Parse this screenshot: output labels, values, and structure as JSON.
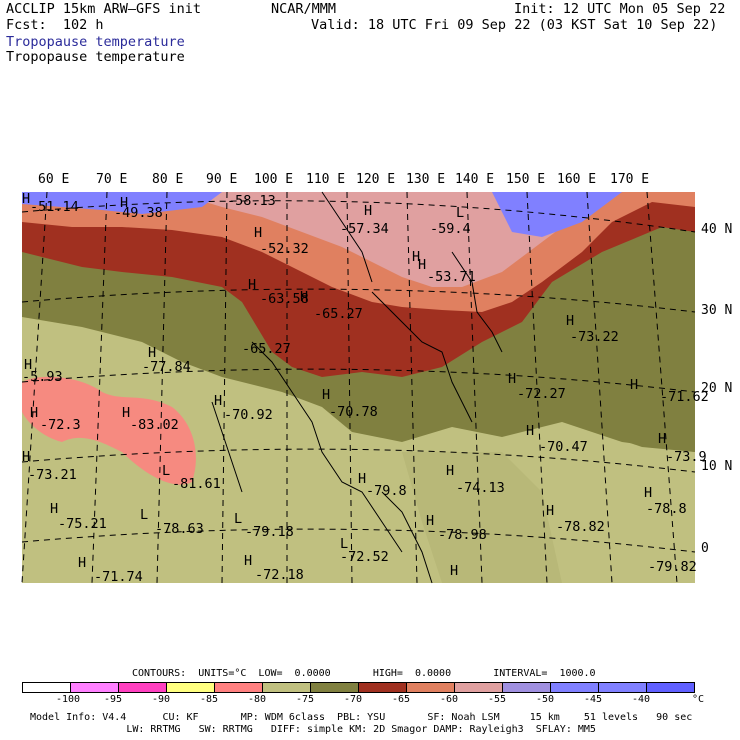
{
  "header": {
    "model": "ACCLIP 15km ARW–GFS init",
    "org": "NCAR/MMM",
    "init": "Init: 12 UTC Mon 05 Sep 22",
    "fcst": "Fcst:  102 h",
    "valid": "Valid: 18 UTC Fri 09 Sep 22 (03 KST Sat 10 Sep 22)",
    "field1": "Tropopause temperature",
    "field2": "Tropopause temperature",
    "field1_color": "#2b2b9a"
  },
  "lon_labels": [
    "60 E",
    "70 E",
    "80 E",
    "90 E",
    "100 E",
    "110 E",
    "120 E",
    "130 E",
    "140 E",
    "150 E",
    "160 E",
    "170 E"
  ],
  "lat_labels": [
    "40 N",
    "30 N",
    "20 N",
    "10 N",
    "0"
  ],
  "map_labels": [
    {
      "t": "-51.14"
    },
    {
      "t": "-49.38"
    },
    {
      "t": "-58.13"
    },
    {
      "t": "-52.32"
    },
    {
      "t": "-57.34"
    },
    {
      "t": "-59.4"
    },
    {
      "t": "-63.58"
    },
    {
      "t": "-53.71"
    },
    {
      "t": "-65.27"
    },
    {
      "t": "-65.27"
    },
    {
      "t": "-73.22"
    },
    {
      "t": "-77.84"
    },
    {
      "t": "-5.93"
    },
    {
      "t": "-72.27"
    },
    {
      "t": "-71.62"
    },
    {
      "t": "-70.92"
    },
    {
      "t": "-70.78"
    },
    {
      "t": "-72.3"
    },
    {
      "t": "-83.02"
    },
    {
      "t": "-70.47"
    },
    {
      "t": "-73.9"
    },
    {
      "t": "-73.21"
    },
    {
      "t": "-81.61"
    },
    {
      "t": "-74.13"
    },
    {
      "t": "-79.8"
    },
    {
      "t": "-75.21"
    },
    {
      "t": "-78.63"
    },
    {
      "t": "-79.18"
    },
    {
      "t": "-78.98"
    },
    {
      "t": "-78.82"
    },
    {
      "t": "-78.8"
    },
    {
      "t": "-72.52"
    },
    {
      "t": "-71.74"
    },
    {
      "t": "-72.18"
    },
    {
      "t": "-79.82"
    }
  ],
  "hl_marks": [
    "H",
    "H",
    "H",
    "H",
    "L",
    "H",
    "H",
    "H",
    "H",
    "H",
    "H",
    "H",
    "H",
    "H",
    "H",
    "H",
    "H",
    "H",
    "H",
    "H",
    "H",
    "L",
    "H",
    "H",
    "H",
    "H",
    "L",
    "L",
    "H",
    "H",
    "L",
    "H",
    "H",
    "H"
  ],
  "footer": {
    "contours": "CONTOURS:  UNITS=°C  LOW=  0.0000       HIGH=  0.0000       INTERVAL=  1000.0",
    "model_info": "Model Info: V4.4      CU: KF       MP: WDM 6class  PBL: YSU       SF: Noah LSM     15 km    51 levels   90 sec",
    "model_info2": "                LW: RRTMG   SW: RRTMG   DIFF: simple KM: 2D Smagor DAMP: Rayleigh3  SFLAY: MM5"
  },
  "colorbar": {
    "colors": [
      "#ffffff",
      "#ff80ff",
      "#ff40c0",
      "#ffff80",
      "#ff8080",
      "#c0c080",
      "#808040",
      "#a03020",
      "#e08060",
      "#e0a0a0",
      "#a090e0",
      "#8080ff",
      "#8080ff",
      "#6060ff"
    ],
    "labels": [
      "-100",
      "-95",
      "-90",
      "-85",
      "-80",
      "-75",
      "-70",
      "-65",
      "-60",
      "-55",
      "-50",
      "-45",
      "-40",
      "°C"
    ]
  }
}
